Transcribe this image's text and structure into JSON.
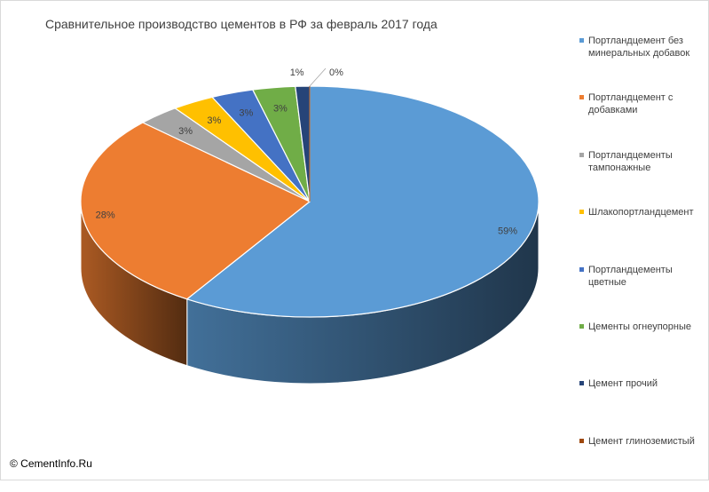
{
  "chart_data": {
    "type": "pie",
    "style": "3d",
    "title": "Сравнительное производство цементов в РФ за февраль 2017 года",
    "legend_position": "right",
    "slices": [
      {
        "name": "Портландцемент без минеральных добавок",
        "value": 59,
        "label": "59%",
        "color": "#5b9bd5"
      },
      {
        "name": "Портландцемент с добавками",
        "value": 28,
        "label": "28%",
        "color": "#ed7d31"
      },
      {
        "name": "Портландцементы тампонажные",
        "value": 3,
        "label": "3%",
        "color": "#a5a5a5"
      },
      {
        "name": "Шлакопортландцемент",
        "value": 3,
        "label": "3%",
        "color": "#ffc000"
      },
      {
        "name": "Портландцементы цветные",
        "value": 3,
        "label": "3%",
        "color": "#4472c4"
      },
      {
        "name": "Цементы огнеупорные",
        "value": 3,
        "label": "3%",
        "color": "#70ad47"
      },
      {
        "name": "Цемент прочий",
        "value": 1,
        "label": "1%",
        "color": "#264478"
      },
      {
        "name": "Цемент глиноземистый",
        "value": 0,
        "label": "0%",
        "color": "#9e480e"
      }
    ]
  },
  "credit": "© CementInfo.Ru"
}
